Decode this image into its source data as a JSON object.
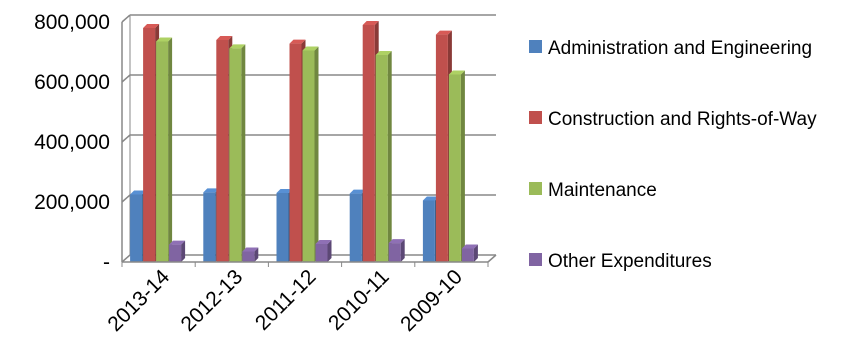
{
  "chart_data": {
    "type": "bar",
    "title": "",
    "xlabel": "",
    "ylabel": "",
    "ylim": [
      0,
      800000
    ],
    "y_ticks": [
      {
        "value": 0,
        "label": "-"
      },
      {
        "value": 200000,
        "label": "200,000"
      },
      {
        "value": 400000,
        "label": "400,000"
      },
      {
        "value": 600000,
        "label": "600,000"
      },
      {
        "value": 800000,
        "label": "800,000"
      }
    ],
    "categories": [
      "2013-14",
      "2012-13",
      "2011-12",
      "2010-11",
      "2009-10"
    ],
    "series": [
      {
        "name": "Administration and Engineering",
        "color": "#4F81BD",
        "values": [
          225000,
          232000,
          230000,
          228000,
          205000
        ]
      },
      {
        "name": "Construction and Rights-of-Way",
        "color": "#C0504D",
        "values": [
          780000,
          740000,
          728000,
          790000,
          758000
        ]
      },
      {
        "name": "Maintenance",
        "color": "#9BBB59",
        "values": [
          735000,
          712000,
          705000,
          690000,
          625000
        ]
      },
      {
        "name": "Other Expenditures",
        "color": "#8064A2",
        "values": [
          58000,
          35000,
          60000,
          63000,
          45000
        ]
      }
    ],
    "grid": "horizontal",
    "legend_position": "right"
  }
}
